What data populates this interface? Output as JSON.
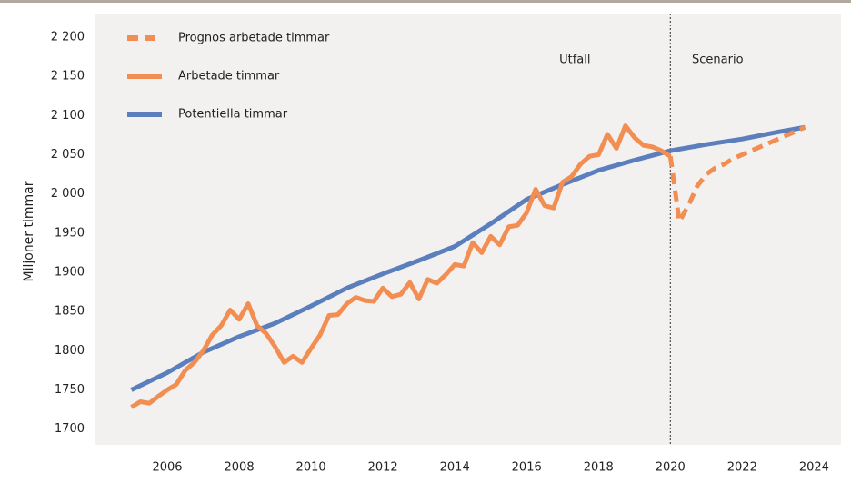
{
  "chart_data": {
    "type": "line",
    "ylabel": "Miljoner timmar",
    "annotations": [
      "Utfall",
      "Scenario"
    ],
    "vline": 2020,
    "legend": "upper left",
    "grid": false,
    "xlim": [
      2004,
      2024.75
    ],
    "ylim": [
      1680,
      2230
    ],
    "xticks": [
      2006,
      2008,
      2010,
      2012,
      2014,
      2016,
      2018,
      2020,
      2022,
      2024
    ],
    "yticks": [
      1700,
      1750,
      1800,
      1850,
      1900,
      1950,
      {
        "value": 2000,
        "label": "2 000"
      },
      {
        "value": 2050,
        "label": "2 050"
      },
      {
        "value": 2100,
        "label": "2 100"
      },
      {
        "value": 2150,
        "label": "2 150"
      },
      {
        "value": 2200,
        "label": "2 200"
      }
    ],
    "series": [
      {
        "name": "Prognos arbetade timmar",
        "color": "#f28e52",
        "dashed": true,
        "x": [
          2020,
          2020.25,
          2020.5,
          2020.75,
          2021,
          2021.25,
          2021.5,
          2021.75,
          2022,
          2022.25,
          2022.5,
          2022.75,
          2023,
          2023.25,
          2023.5,
          2023.75
        ],
        "values": [
          2048,
          1965,
          1985,
          2010,
          2025,
          2033,
          2038,
          2045,
          2050,
          2055,
          2060,
          2065,
          2070,
          2075,
          2080,
          2085
        ]
      },
      {
        "name": "Arbetade timmar",
        "color": "#f28e52",
        "x": [
          2005,
          2005.25,
          2005.5,
          2005.75,
          2006,
          2006.25,
          2006.5,
          2006.75,
          2007,
          2007.25,
          2007.5,
          2007.75,
          2008,
          2008.25,
          2008.5,
          2008.75,
          2009,
          2009.25,
          2009.5,
          2009.75,
          2010,
          2010.25,
          2010.5,
          2010.75,
          2011,
          2011.25,
          2011.5,
          2011.75,
          2012,
          2012.25,
          2012.5,
          2012.75,
          2013,
          2013.25,
          2013.5,
          2013.75,
          2014,
          2014.25,
          2014.5,
          2014.75,
          2015,
          2015.25,
          2015.5,
          2015.75,
          2016,
          2016.25,
          2016.5,
          2016.75,
          2017,
          2017.25,
          2017.5,
          2017.75,
          2018,
          2018.25,
          2018.5,
          2018.75,
          2019,
          2019.25,
          2019.5,
          2019.75,
          2020
        ],
        "values": [
          1728,
          1735,
          1733,
          1742,
          1750,
          1757,
          1775,
          1785,
          1800,
          1820,
          1832,
          1852,
          1840,
          1860,
          1832,
          1822,
          1805,
          1785,
          1793,
          1785,
          1803,
          1820,
          1845,
          1846,
          1860,
          1868,
          1864,
          1863,
          1880,
          1869,
          1872,
          1887,
          1866,
          1891,
          1886,
          1897,
          1910,
          1908,
          1938,
          1925,
          1946,
          1935,
          1958,
          1960,
          1976,
          2006,
          1985,
          1982,
          2015,
          2022,
          2038,
          2048,
          2050,
          2076,
          2058,
          2087,
          2072,
          2062,
          2060,
          2055,
          2048
        ]
      },
      {
        "name": "Potentiella timmar",
        "color": "#5b7fbd",
        "x": [
          2005,
          2006,
          2007,
          2008,
          2009,
          2010,
          2011,
          2012,
          2013,
          2014,
          2015,
          2016,
          2017,
          2018,
          2019,
          2020,
          2021,
          2022,
          2023,
          2023.75
        ],
        "values": [
          1750,
          1772,
          1798,
          1818,
          1835,
          1857,
          1880,
          1898,
          1915,
          1933,
          1962,
          1993,
          2012,
          2030,
          2043,
          2055,
          2063,
          2070,
          2079,
          2085
        ]
      }
    ]
  }
}
